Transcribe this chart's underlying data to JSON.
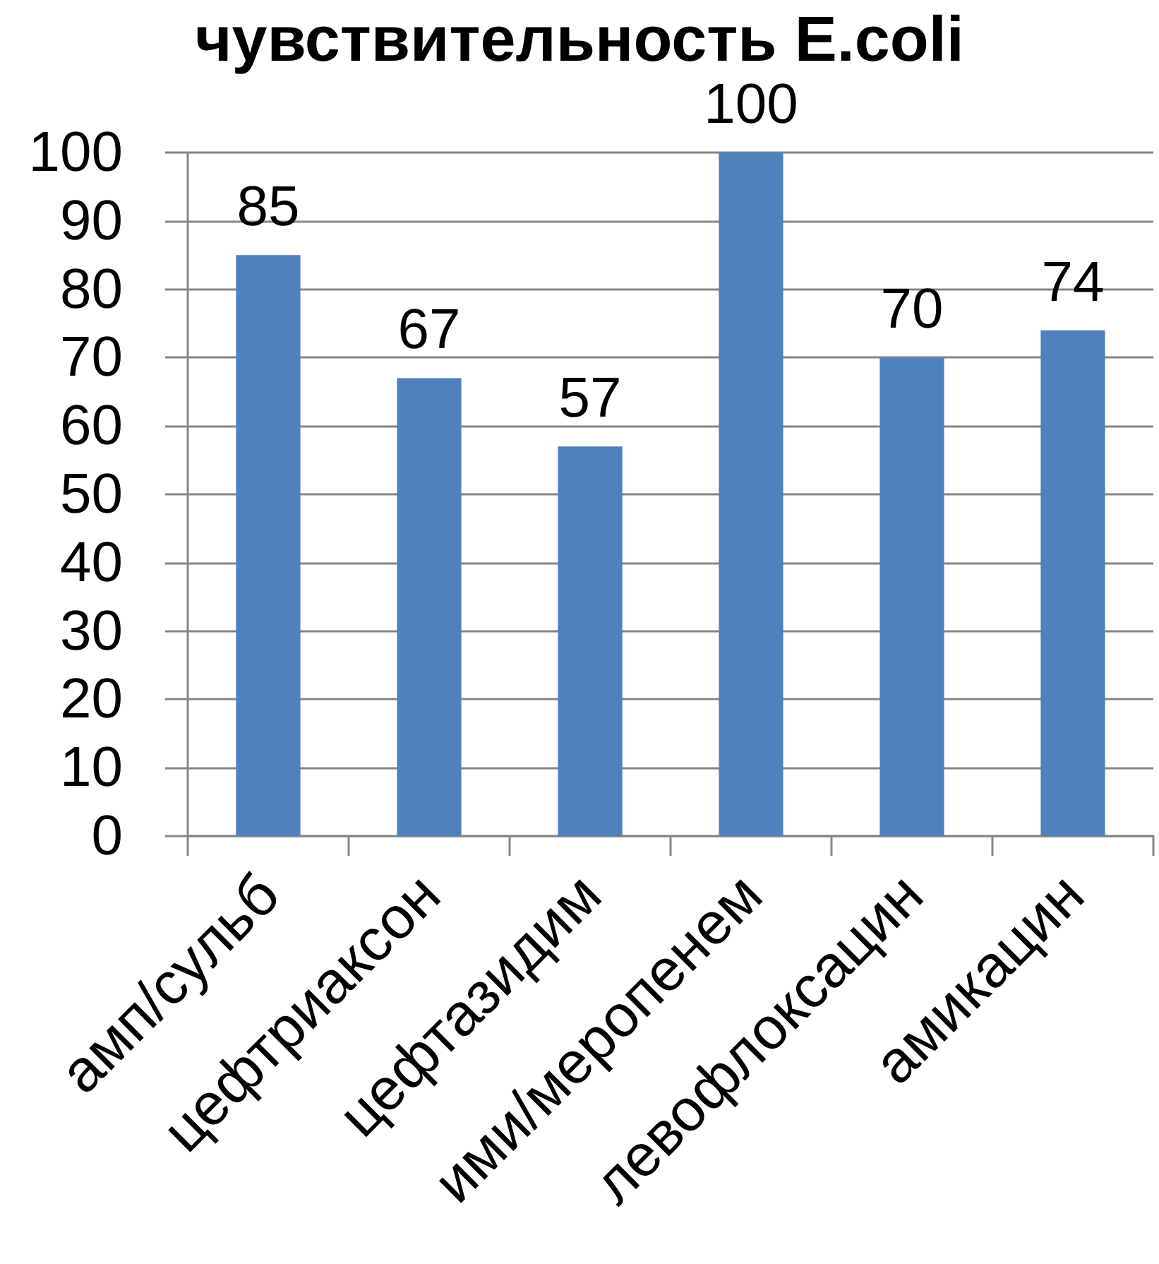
{
  "chart_data": {
    "type": "bar",
    "title": "чувствительность E.coli",
    "categories": [
      "амп/сульб",
      "цефтриаксон",
      "цефтазидим",
      "ими/меропенем",
      "левофлоксацин",
      "амикацин"
    ],
    "values": [
      85,
      67,
      57,
      100,
      70,
      74
    ],
    "color": "#4f81bd",
    "ylim": [
      0,
      100
    ],
    "yticks": [
      0,
      10,
      20,
      30,
      40,
      50,
      60,
      70,
      80,
      90,
      100
    ],
    "grid": "y",
    "data_labels": true
  }
}
